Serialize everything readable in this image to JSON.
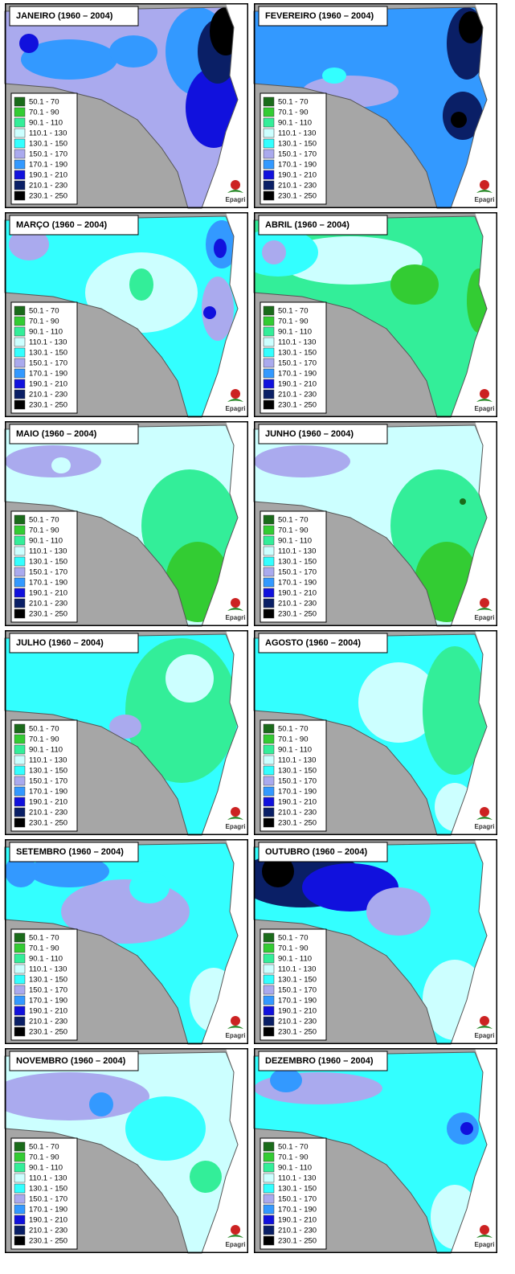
{
  "panels": [
    {
      "title": "JANEIRO  (1960 – 2004)"
    },
    {
      "title": "FEVEREIRO  (1960 – 2004)"
    },
    {
      "title": "MARÇO  (1960 – 2004)"
    },
    {
      "title": "ABRIL  (1960 – 2004)"
    },
    {
      "title": "MAIO  (1960 – 2004)"
    },
    {
      "title": "JUNHO  (1960 – 2004)"
    },
    {
      "title": "JULHO  (1960 – 2004)"
    },
    {
      "title": "AGOSTO  (1960 – 2004)"
    },
    {
      "title": "SETEMBRO  (1960 – 2004)"
    },
    {
      "title": "OUTUBRO  (1960 – 2004)"
    },
    {
      "title": "NOVEMBRO  (1960 – 2004)"
    },
    {
      "title": "DEZEMBRO  (1960 – 2004)"
    }
  ],
  "legend": [
    {
      "label": "50.1 - 70",
      "color": "#1a6b1a"
    },
    {
      "label": "70.1 - 90",
      "color": "#33cc33"
    },
    {
      "label": "90.1 - 110",
      "color": "#33ee99"
    },
    {
      "label": "110.1 - 130",
      "color": "#ccffff"
    },
    {
      "label": "130.1 - 150",
      "color": "#33ffff"
    },
    {
      "label": "150.1 - 170",
      "color": "#aaaaee"
    },
    {
      "label": "170.1 - 190",
      "color": "#3399ff"
    },
    {
      "label": "190.1 - 210",
      "color": "#1111dd"
    },
    {
      "label": "210.1 - 230",
      "color": "#0a1f66"
    },
    {
      "label": "230.1 - 250",
      "color": "#000000"
    }
  ],
  "logo": "Epagri"
}
